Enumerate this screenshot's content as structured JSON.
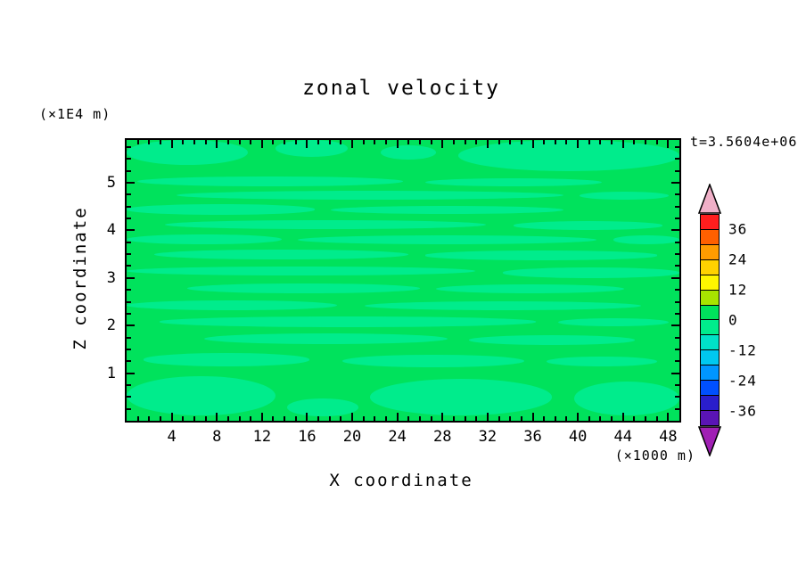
{
  "chart_data": {
    "type": "heatmap",
    "subtype": "filled-contour",
    "title": "zonal velocity",
    "time": "t=3.5604e+06",
    "xlabel": "X coordinate",
    "ylabel": "Z coordinate",
    "x_unit": "(×1000 m)",
    "y_unit": "(×1E4 m)",
    "xlim": [
      0,
      49
    ],
    "ylim": [
      0,
      5.9
    ],
    "x_ticks": [
      4,
      8,
      12,
      16,
      20,
      24,
      28,
      32,
      36,
      40,
      44,
      48
    ],
    "y_ticks": [
      1,
      2,
      3,
      4,
      5
    ],
    "x_minor_step": 1,
    "y_minor_step": 0.25,
    "grid": false,
    "legend_position": "right-colorbar",
    "colorbar": {
      "labels": [
        36,
        24,
        12,
        0,
        -12,
        -24,
        -36
      ],
      "level_step": 6,
      "range": [
        -42,
        42
      ],
      "segment_colors_top_to_bottom": [
        "#FF1E1E",
        "#FF6000",
        "#FF9C00",
        "#FFD200",
        "#FFF600",
        "#A8E400",
        "#00E25C",
        "#00EC8C",
        "#00E2C8",
        "#00C8F0",
        "#0096FF",
        "#0050FF",
        "#2A1ECC",
        "#5A14B4"
      ],
      "over_arrow_color": "#F0B0C8",
      "under_arrow_color": "#A020B4"
    },
    "fill": {
      "base_color": "#00E25C",
      "base_band": "0 to 6",
      "streak_color": "#00EC8C",
      "streak_band": "-6 to 0",
      "streaks_pct": [
        [
          0,
          0,
          22,
          9
        ],
        [
          27,
          0,
          13,
          6
        ],
        [
          60,
          0,
          40,
          11
        ],
        [
          46,
          2,
          10,
          5
        ],
        [
          2,
          13,
          48,
          3.6
        ],
        [
          54,
          13.5,
          32,
          3
        ],
        [
          9,
          18,
          70,
          3.2
        ],
        [
          82,
          18.5,
          16,
          2.8
        ],
        [
          0,
          23,
          34,
          3.6
        ],
        [
          37,
          23.5,
          42,
          3
        ],
        [
          7,
          28.5,
          58,
          3.4
        ],
        [
          70,
          29,
          27,
          3
        ],
        [
          0,
          33.5,
          28,
          3.6
        ],
        [
          31,
          34,
          54,
          3.2
        ],
        [
          88,
          34,
          12,
          3
        ],
        [
          5,
          39,
          46,
          3.6
        ],
        [
          54,
          39.5,
          42,
          3.2
        ],
        [
          0,
          45,
          63,
          3.4
        ],
        [
          68,
          45.5,
          32,
          3.6
        ],
        [
          11,
          51,
          42,
          3.6
        ],
        [
          56,
          51.5,
          34,
          3.2
        ],
        [
          0,
          57,
          38,
          3.6
        ],
        [
          43,
          57.5,
          50,
          3.2
        ],
        [
          6,
          63,
          68,
          3.6
        ],
        [
          78,
          63.5,
          20,
          3
        ],
        [
          14,
          69,
          44,
          3.8
        ],
        [
          62,
          69.5,
          30,
          3.4
        ],
        [
          3,
          76,
          30,
          4.5
        ],
        [
          39,
          76.5,
          33,
          4.5
        ],
        [
          76,
          77,
          20,
          3.6
        ],
        [
          0,
          84,
          27,
          14
        ],
        [
          44,
          85,
          33,
          13
        ],
        [
          81,
          86,
          19,
          12
        ],
        [
          29,
          92,
          13,
          6.5
        ]
      ]
    }
  }
}
